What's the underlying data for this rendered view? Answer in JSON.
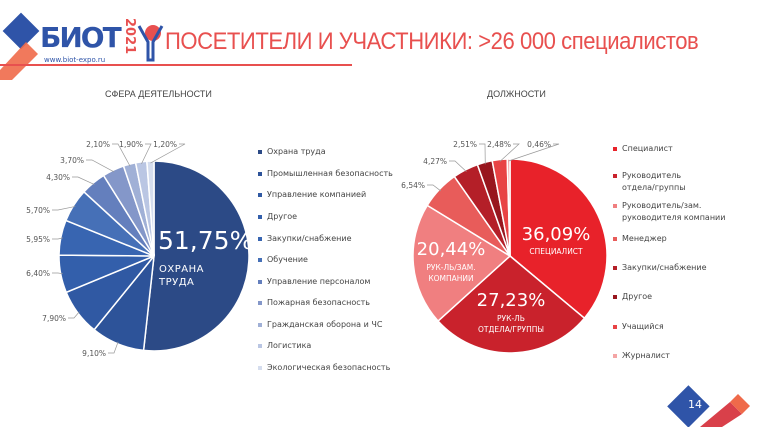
{
  "header": {
    "logo_text": "БИОТ",
    "logo_year": "2021",
    "logo_url": "www.biot-expo.ru",
    "title": "ПОСЕТИТЕЛИ И УЧАСТНИКИ: >26 000 специалистов"
  },
  "page_number": "14",
  "colors": {
    "accent_red": "#e8504f",
    "brand_blue": "#2f54a8"
  },
  "chart_data": [
    {
      "type": "pie",
      "title": "СФЕРА ДЕЯТЕЛЬНОСТИ",
      "categories": [
        "Охрана труда",
        "Промышленная безопасность",
        "Управление компанией",
        "Другое",
        "Закупки/снабжение",
        "Обучение",
        "Управление персоналом",
        "Пожарная безопасность",
        "Гражданская оборона и ЧС",
        "Логистика",
        "Экологическая безопасность"
      ],
      "values": [
        51.75,
        9.1,
        7.9,
        6.4,
        5.95,
        5.7,
        4.3,
        3.7,
        2.1,
        1.9,
        1.2
      ],
      "labels": [
        "51,75%",
        "9,10%",
        "7,90%",
        "6,40%",
        "5,95%",
        "5,70%",
        "4,30%",
        "3,70%",
        "2,10%",
        "1,90%",
        "1,20%"
      ],
      "colors": [
        "#2c4a86",
        "#2d5399",
        "#3059a3",
        "#335fab",
        "#3865b1",
        "#4670b7",
        "#647fbd",
        "#8497c9",
        "#a0b0d6",
        "#bac6e3",
        "#d5ddee"
      ],
      "highlight": {
        "value": "51,75%",
        "caption": "ОХРАНА\nТРУДА"
      },
      "legend": "right"
    },
    {
      "type": "pie",
      "title": "ДОЛЖНОСТИ",
      "categories": [
        "Специалист",
        "Руководитель\nотдела/группы",
        "Руководитель/зам.\nруководителя компании",
        "Менеджер",
        "Закупки/снабжение",
        "Другое",
        "Учащийся",
        "Журналист"
      ],
      "values": [
        36.09,
        27.23,
        20.44,
        6.54,
        4.27,
        2.51,
        2.48,
        0.46
      ],
      "labels": [
        "36,09%",
        "27,23%",
        "20,44%",
        "6,54%",
        "4,27%",
        "2,51%",
        "2,48%",
        "0,46%"
      ],
      "colors": [
        "#e8222a",
        "#c9222c",
        "#f07f80",
        "#e85c5a",
        "#b41f28",
        "#98161e",
        "#e84345",
        "#f4a5a5"
      ],
      "highlights": [
        {
          "value": "36,09%",
          "caption": "СПЕЦИАЛИСТ"
        },
        {
          "value": "27,23%",
          "caption": "РУК-ЛЬ\nОТДЕЛА/ГРУППЫ"
        },
        {
          "value": "20,44%",
          "caption": "РУК-ЛЬ/ЗАМ.\nКОМПАНИИ"
        }
      ],
      "legend": "right"
    }
  ]
}
